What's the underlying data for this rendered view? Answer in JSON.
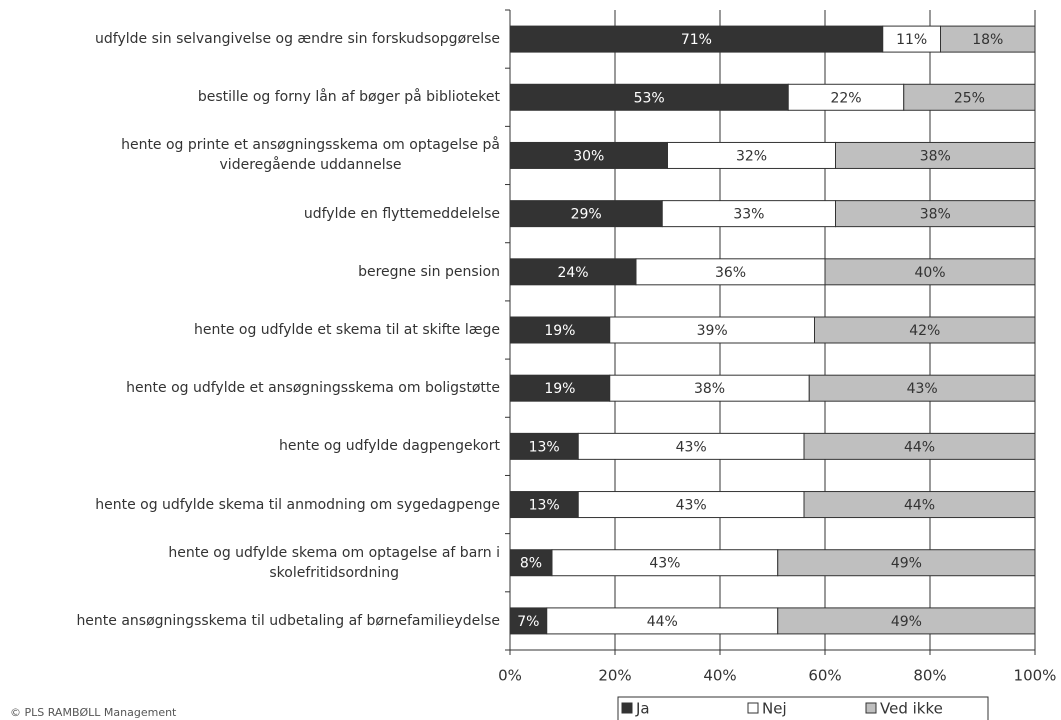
{
  "chart_data": {
    "type": "stacked_barh",
    "categories": [
      "udfylde sin selvangivelse og ændre sin forskudsopgørelse",
      "bestille og forny lån af bøger på biblioteket",
      "hente og printe et ansøgningsskema om optagelse på\nvideregående uddannelse",
      "udfylde en flyttemeddelelse",
      "beregne sin pension",
      "hente og udfylde et skema til at skifte læge",
      "hente og udfylde et ansøgningsskema om boligstøtte",
      "hente og udfylde dagpengekort",
      "hente og udfylde skema til anmodning om sygedagpenge",
      "hente og udfylde skema om optagelse af barn i\nskolefritidsordning",
      "hente ansøgningsskema til udbetaling af børnefamilieydelse"
    ],
    "series": [
      {
        "name": "Ja",
        "color": "#333333",
        "label_color": "#ffffff",
        "values": [
          71,
          53,
          30,
          29,
          24,
          19,
          19,
          13,
          13,
          8,
          7
        ],
        "value_labels": [
          "71%",
          "53%",
          "30%",
          "29%",
          "24%",
          "19%",
          "19%",
          "13%",
          "13%",
          "8%",
          "7%"
        ]
      },
      {
        "name": "Nej",
        "color": "#ffffff",
        "label_color": "#333333",
        "values": [
          11,
          22,
          32,
          33,
          36,
          39,
          38,
          43,
          43,
          43,
          44
        ],
        "value_labels": [
          "11%",
          "22%",
          "32%",
          "33%",
          "36%",
          "39%",
          "38%",
          "43%",
          "43%",
          "43%",
          "44%"
        ]
      },
      {
        "name": "Ved ikke",
        "color": "#bfbfbf",
        "label_color": "#333333",
        "values": [
          18,
          25,
          38,
          38,
          40,
          42,
          43,
          44,
          44,
          49,
          49
        ],
        "value_labels": [
          "18%",
          "25%",
          "38%",
          "38%",
          "40%",
          "42%",
          "43%",
          "44%",
          "44%",
          "49%",
          "49%"
        ]
      }
    ],
    "xlim": [
      0,
      100
    ],
    "xticks": [
      {
        "value": 0,
        "label": "0%"
      },
      {
        "value": 20,
        "label": "20%"
      },
      {
        "value": 40,
        "label": "40%"
      },
      {
        "value": 60,
        "label": "60%"
      },
      {
        "value": 80,
        "label": "80%"
      },
      {
        "value": 100,
        "label": "100%"
      }
    ],
    "grid": true,
    "legend": "bottom",
    "footnote": "© PLS RAMBØLL Management"
  }
}
